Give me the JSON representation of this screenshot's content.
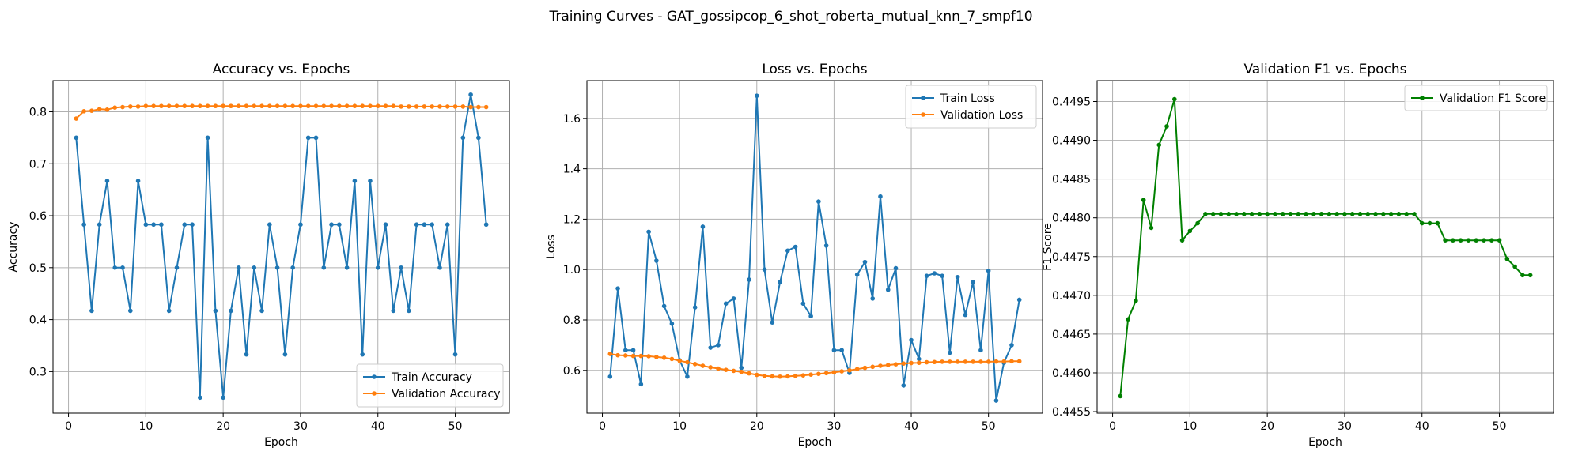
{
  "figure": {
    "title": "Training Curves - GAT_gossipcop_6_shot_roberta_mutual_knn_7_smpf10"
  },
  "colors": {
    "blue": "#1f77b4",
    "orange": "#ff7f0e",
    "green": "#008000",
    "grid": "#b0b0b0"
  },
  "chart_data": [
    {
      "type": "line",
      "title": "Accuracy vs. Epochs",
      "xlabel": "Epoch",
      "ylabel": "Accuracy",
      "xlim": [
        -2,
        57
      ],
      "ylim": [
        0.22,
        0.86
      ],
      "xticks": [
        0,
        10,
        20,
        30,
        40,
        50
      ],
      "yticks": [
        0.3,
        0.4,
        0.5,
        0.6,
        0.7,
        0.8
      ],
      "ytick_labels": [
        "0.3",
        "0.4",
        "0.5",
        "0.6",
        "0.7",
        "0.8"
      ],
      "grid": true,
      "legend_position": "lower right",
      "x": [
        1,
        2,
        3,
        4,
        5,
        6,
        7,
        8,
        9,
        10,
        11,
        12,
        13,
        14,
        15,
        16,
        17,
        18,
        19,
        20,
        21,
        22,
        23,
        24,
        25,
        26,
        27,
        28,
        29,
        30,
        31,
        32,
        33,
        34,
        35,
        36,
        37,
        38,
        39,
        40,
        41,
        42,
        43,
        44,
        45,
        46,
        47,
        48,
        49,
        50,
        51,
        52,
        53,
        54
      ],
      "series": [
        {
          "name": "Train Accuracy",
          "color": "#1f77b4",
          "values": [
            0.75,
            0.583,
            0.417,
            0.583,
            0.667,
            0.5,
            0.5,
            0.417,
            0.667,
            0.583,
            0.583,
            0.583,
            0.417,
            0.5,
            0.583,
            0.583,
            0.25,
            0.75,
            0.417,
            0.25,
            0.417,
            0.5,
            0.333,
            0.5,
            0.417,
            0.583,
            0.5,
            0.333,
            0.5,
            0.583,
            0.75,
            0.75,
            0.5,
            0.583,
            0.583,
            0.5,
            0.667,
            0.333,
            0.667,
            0.5,
            0.583,
            0.417,
            0.5,
            0.417,
            0.583,
            0.583,
            0.583,
            0.5,
            0.583,
            0.333,
            0.75,
            0.833,
            0.75,
            0.583
          ]
        },
        {
          "name": "Validation Accuracy",
          "color": "#ff7f0e",
          "values": [
            0.787,
            0.801,
            0.802,
            0.805,
            0.804,
            0.808,
            0.809,
            0.81,
            0.81,
            0.811,
            0.811,
            0.811,
            0.811,
            0.811,
            0.811,
            0.811,
            0.811,
            0.811,
            0.811,
            0.811,
            0.811,
            0.811,
            0.811,
            0.811,
            0.811,
            0.811,
            0.811,
            0.811,
            0.811,
            0.811,
            0.811,
            0.811,
            0.811,
            0.811,
            0.811,
            0.811,
            0.811,
            0.811,
            0.811,
            0.811,
            0.811,
            0.811,
            0.81,
            0.81,
            0.81,
            0.81,
            0.81,
            0.81,
            0.81,
            0.81,
            0.81,
            0.809,
            0.809,
            0.809
          ]
        }
      ]
    },
    {
      "type": "line",
      "title": "Loss vs. Epochs",
      "xlabel": "Epoch",
      "ylabel": "Loss",
      "xlim": [
        -2,
        57
      ],
      "ylim": [
        0.43,
        1.75
      ],
      "xticks": [
        0,
        10,
        20,
        30,
        40,
        50
      ],
      "yticks": [
        0.6,
        0.8,
        1.0,
        1.2,
        1.4,
        1.6
      ],
      "ytick_labels": [
        "0.6",
        "0.8",
        "1.0",
        "1.2",
        "1.4",
        "1.6"
      ],
      "grid": true,
      "legend_position": "upper right",
      "x": [
        1,
        2,
        3,
        4,
        5,
        6,
        7,
        8,
        9,
        10,
        11,
        12,
        13,
        14,
        15,
        16,
        17,
        18,
        19,
        20,
        21,
        22,
        23,
        24,
        25,
        26,
        27,
        28,
        29,
        30,
        31,
        32,
        33,
        34,
        35,
        36,
        37,
        38,
        39,
        40,
        41,
        42,
        43,
        44,
        45,
        46,
        47,
        48,
        49,
        50,
        51,
        52,
        53,
        54
      ],
      "series": [
        {
          "name": "Train Loss",
          "color": "#1f77b4",
          "values": [
            0.575,
            0.925,
            0.68,
            0.68,
            0.545,
            1.15,
            1.035,
            0.855,
            0.785,
            0.64,
            0.575,
            0.85,
            1.17,
            0.69,
            0.7,
            0.865,
            0.885,
            0.61,
            0.96,
            1.69,
            1.0,
            0.79,
            0.95,
            1.075,
            1.09,
            0.865,
            0.815,
            1.27,
            1.095,
            0.68,
            0.68,
            0.59,
            0.98,
            1.03,
            0.885,
            1.29,
            0.92,
            1.005,
            0.54,
            0.72,
            0.645,
            0.975,
            0.985,
            0.975,
            0.67,
            0.97,
            0.82,
            0.95,
            0.68,
            0.995,
            0.48,
            0.63,
            0.7,
            0.88
          ]
        },
        {
          "name": "Validation Loss",
          "color": "#ff7f0e",
          "values": [
            0.665,
            0.66,
            0.659,
            0.657,
            0.657,
            0.656,
            0.653,
            0.65,
            0.645,
            0.638,
            0.632,
            0.625,
            0.618,
            0.612,
            0.607,
            0.602,
            0.598,
            0.594,
            0.588,
            0.582,
            0.578,
            0.576,
            0.575,
            0.576,
            0.578,
            0.58,
            0.583,
            0.586,
            0.589,
            0.592,
            0.596,
            0.6,
            0.605,
            0.61,
            0.614,
            0.618,
            0.621,
            0.624,
            0.627,
            0.629,
            0.63,
            0.632,
            0.633,
            0.634,
            0.634,
            0.634,
            0.634,
            0.634,
            0.634,
            0.634,
            0.635,
            0.635,
            0.636,
            0.636
          ]
        }
      ]
    },
    {
      "type": "line",
      "title": "Validation F1 vs. Epochs",
      "xlabel": "Epoch",
      "ylabel": "F1 Score",
      "xlim": [
        -2,
        57
      ],
      "ylim": [
        0.44548,
        0.44977
      ],
      "xticks": [
        0,
        10,
        20,
        30,
        40,
        50
      ],
      "yticks": [
        0.4455,
        0.446,
        0.4465,
        0.447,
        0.4475,
        0.448,
        0.4485,
        0.449,
        0.4495
      ],
      "ytick_labels": [
        "0.4455",
        "0.4460",
        "0.4465",
        "0.4470",
        "0.4475",
        "0.4480",
        "0.4485",
        "0.4490",
        "0.4495"
      ],
      "grid": true,
      "legend_position": "upper right",
      "x": [
        1,
        2,
        3,
        4,
        5,
        6,
        7,
        8,
        9,
        10,
        11,
        12,
        13,
        14,
        15,
        16,
        17,
        18,
        19,
        20,
        21,
        22,
        23,
        24,
        25,
        26,
        27,
        28,
        29,
        30,
        31,
        32,
        33,
        34,
        35,
        36,
        37,
        38,
        39,
        40,
        41,
        42,
        43,
        44,
        45,
        46,
        47,
        48,
        49,
        50,
        51,
        52,
        53,
        54
      ],
      "series": [
        {
          "name": "Validation F1 Score",
          "color": "#008000",
          "values": [
            0.4457,
            0.44669,
            0.44693,
            0.44823,
            0.44787,
            0.44894,
            0.44918,
            0.44953,
            0.44771,
            0.44783,
            0.44793,
            0.44805,
            0.44805,
            0.44805,
            0.44805,
            0.44805,
            0.44805,
            0.44805,
            0.44805,
            0.44805,
            0.44805,
            0.44805,
            0.44805,
            0.44805,
            0.44805,
            0.44805,
            0.44805,
            0.44805,
            0.44805,
            0.44805,
            0.44805,
            0.44805,
            0.44805,
            0.44805,
            0.44805,
            0.44805,
            0.44805,
            0.44805,
            0.44805,
            0.44793,
            0.44793,
            0.44793,
            0.44771,
            0.44771,
            0.44771,
            0.44771,
            0.44771,
            0.44771,
            0.44771,
            0.44771,
            0.44747,
            0.44737,
            0.44726,
            0.44726
          ]
        }
      ]
    }
  ]
}
